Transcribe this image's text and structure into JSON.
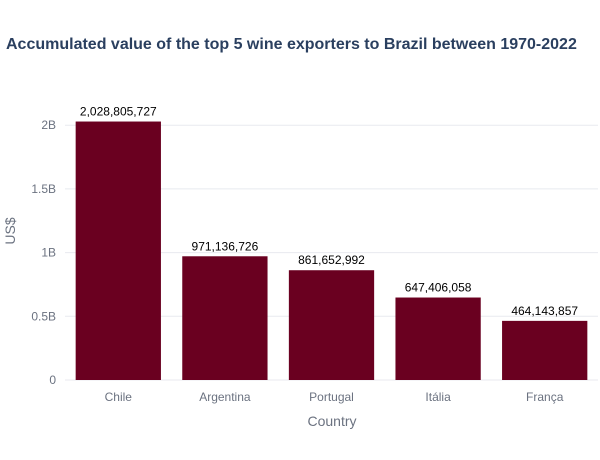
{
  "chart_data": {
    "type": "bar",
    "title": "Accumulated value of the top 5 wine exporters to Brazil between 1970-2022",
    "xlabel": "Country",
    "ylabel": "US$",
    "categories": [
      "Chile",
      "Argentina",
      "Portugal",
      "Itália",
      "França"
    ],
    "values": [
      2028805727,
      971136726,
      861652992,
      647406058,
      464143857
    ],
    "data_labels": [
      "2,028,805,727",
      "971,136,726",
      "861,652,992",
      "647,406,058",
      "464,143,857"
    ],
    "ylim": [
      0,
      2135000000
    ],
    "yticks": [
      {
        "value": 0,
        "label": "0"
      },
      {
        "value": 500000000,
        "label": "0.5B"
      },
      {
        "value": 1000000000,
        "label": "1B"
      },
      {
        "value": 1500000000,
        "label": "1.5B"
      },
      {
        "value": 2000000000,
        "label": "2B"
      }
    ],
    "grid": true,
    "bar_color": "#6a0020",
    "grid_color": "#e8eaef"
  }
}
